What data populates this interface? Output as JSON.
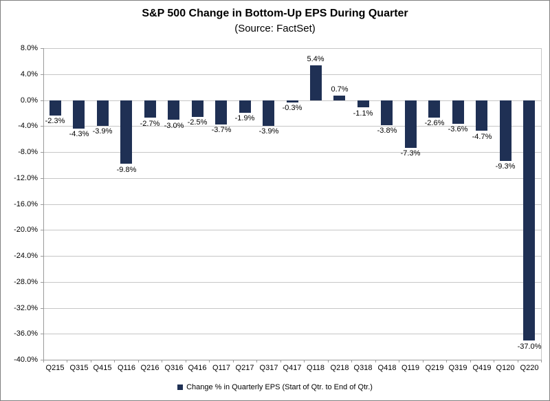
{
  "chart_data": {
    "type": "bar",
    "title": "S&P 500 Change in Bottom-Up EPS During Quarter",
    "subtitle": "(Source: FactSet)",
    "legend_label": "Change % in Quarterly EPS (Start of Qtr. to End of Qtr.)",
    "legend_position": "bottom",
    "categories": [
      "Q215",
      "Q315",
      "Q415",
      "Q116",
      "Q216",
      "Q316",
      "Q416",
      "Q117",
      "Q217",
      "Q317",
      "Q417",
      "Q118",
      "Q218",
      "Q318",
      "Q418",
      "Q119",
      "Q219",
      "Q319",
      "Q419",
      "Q120",
      "Q220"
    ],
    "values": [
      -2.3,
      -4.3,
      -3.9,
      -9.8,
      -2.7,
      -3.0,
      -2.5,
      -3.7,
      -1.9,
      -3.9,
      -0.3,
      5.4,
      0.7,
      -1.1,
      -3.8,
      -7.3,
      -2.6,
      -3.6,
      -4.7,
      -9.3,
      -37.0
    ],
    "data_labels": true,
    "xlabel": "",
    "ylabel": "",
    "ylim": [
      -40,
      8
    ],
    "ytick_step": 4,
    "ytick_format": "0.0%",
    "grid": true,
    "colors": {
      "bar": "#1f3054",
      "gridline": "#c6c6c6",
      "axis": "#999999",
      "text": "#000000",
      "border": "#7f7f7f",
      "background": "#ffffff"
    }
  }
}
